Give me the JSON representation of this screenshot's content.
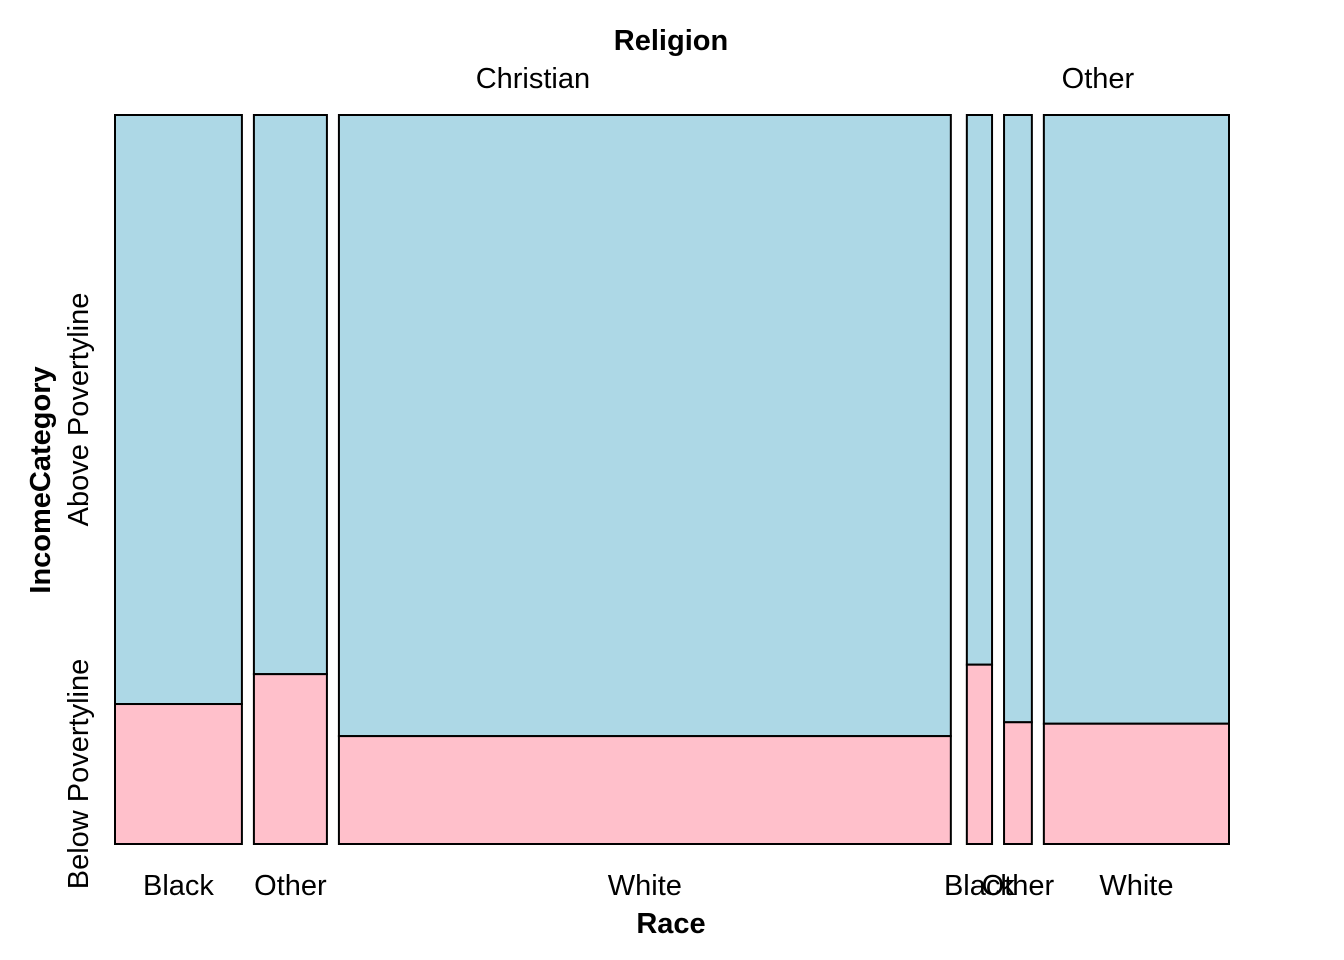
{
  "chart_data": {
    "type": "mosaic",
    "title": "Religion",
    "xlabel": "Race",
    "ylabel": "IncomeCategory",
    "groups": [
      {
        "name": "Christian",
        "categories": [
          {
            "name": "Black",
            "share": 0.146,
            "below_poverty": 0.192
          },
          {
            "name": "Other",
            "share": 0.084,
            "below_poverty": 0.233
          },
          {
            "name": "White",
            "share": 0.704,
            "below_poverty": 0.148
          }
        ]
      },
      {
        "name": "Other",
        "categories": [
          {
            "name": "Black",
            "share": 0.029,
            "below_poverty": 0.246
          },
          {
            "name": "Other",
            "share": 0.032,
            "below_poverty": 0.167
          },
          {
            "name": "White",
            "share": 0.213,
            "below_poverty": 0.165
          }
        ]
      }
    ],
    "levels": [
      {
        "name": "Below Povertyline",
        "color": "#FFC0CB"
      },
      {
        "name": "Above Povertyline",
        "color": "#ADD8E6"
      }
    ],
    "stroke_color": "#000000"
  }
}
